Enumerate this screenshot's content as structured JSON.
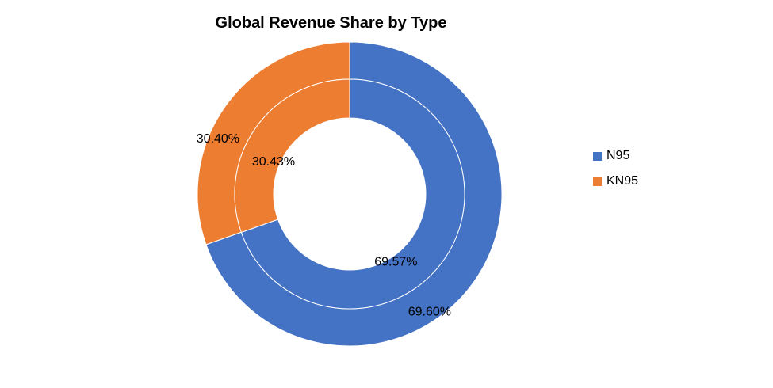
{
  "chart_data": {
    "type": "pie",
    "variant": "donut",
    "title": "Global Revenue Share by Type",
    "categories": [
      "N95",
      "KN95"
    ],
    "colors": [
      "#4472C4",
      "#ED7D31"
    ],
    "series": [
      {
        "values": [
          69.6,
          30.4
        ],
        "labels": [
          "69.60%",
          "30.40%"
        ]
      },
      {
        "values": [
          69.57,
          30.43
        ],
        "labels": [
          "69.57%",
          "30.43%"
        ]
      }
    ],
    "legend_position": "right"
  }
}
